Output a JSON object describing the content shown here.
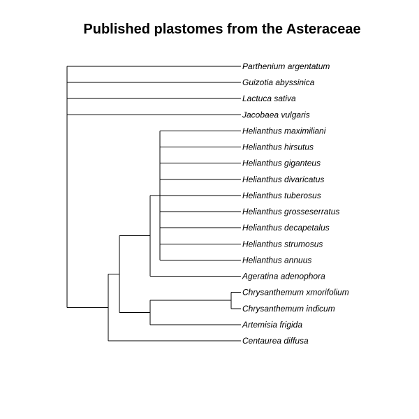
{
  "title": "Published plastomes from the Asteraceae",
  "tree": {
    "children": [
      {
        "label": "Parthenium argentatum"
      },
      {
        "label": "Guizotia abyssinica"
      },
      {
        "label": "Lactuca sativa"
      },
      {
        "label": "Jacobaea vulgaris"
      },
      {
        "children": [
          {
            "children": [
              {
                "children": [
                  {
                    "children": [
                      {
                        "label": "Helianthus maximiliani"
                      },
                      {
                        "label": "Helianthus hirsutus"
                      },
                      {
                        "label": "Helianthus giganteus"
                      },
                      {
                        "label": "Helianthus divaricatus"
                      },
                      {
                        "label": "Helianthus tuberosus"
                      },
                      {
                        "label": "Helianthus grosseserratus"
                      },
                      {
                        "label": "Helianthus decapetalus"
                      },
                      {
                        "label": "Helianthus strumosus"
                      },
                      {
                        "label": "Helianthus annuus"
                      }
                    ]
                  },
                  {
                    "label": "Ageratina adenophora"
                  }
                ]
              },
              {
                "children": [
                  {
                    "children": [
                      {
                        "label": "Chrysanthemum xmorifolium"
                      },
                      {
                        "label": "Chrysanthemum indicum"
                      }
                    ]
                  },
                  {
                    "label": "Artemisia frigida"
                  }
                ]
              }
            ]
          },
          {
            "label": "Centaurea diffusa"
          }
        ]
      }
    ]
  }
}
